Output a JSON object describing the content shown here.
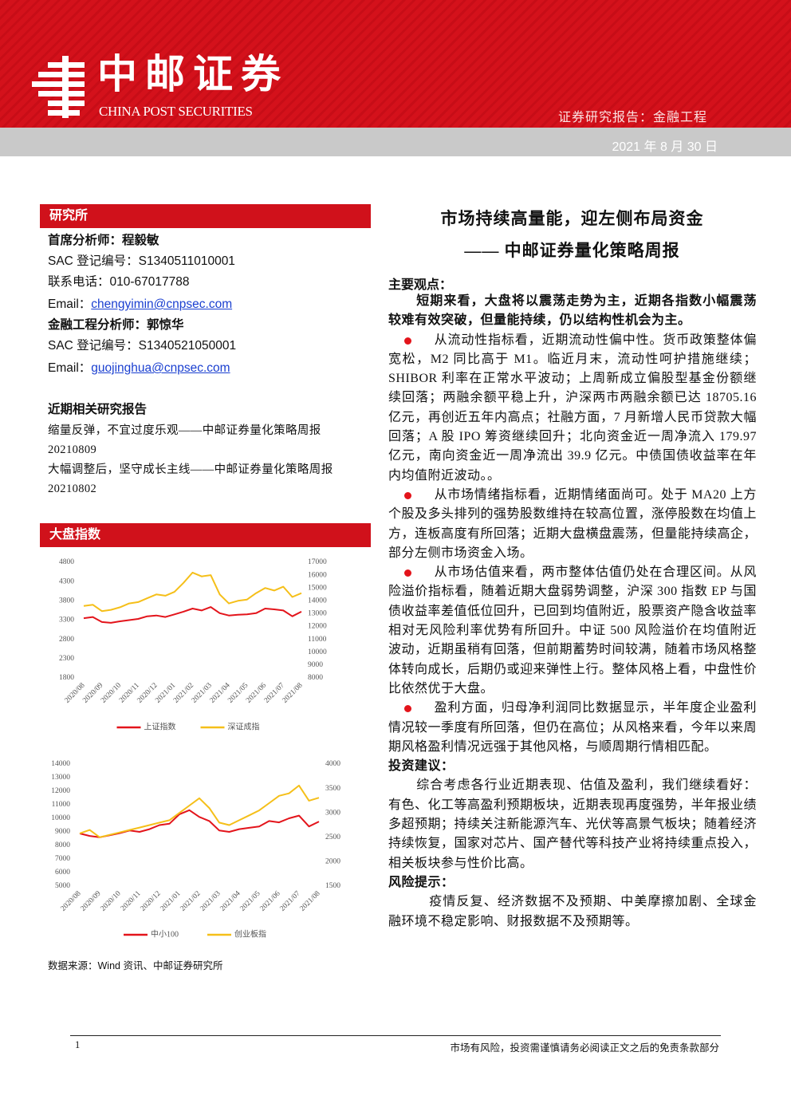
{
  "header": {
    "brand": "中邮证券",
    "brand_en": "CHINA POST SECURITIES",
    "report_type": "证券研究报告：金融工程",
    "date": "2021 年 8 月 30 日"
  },
  "sidebar": {
    "institute_heading": "研究所",
    "analysts": [
      {
        "title": "首席分析师：程毅敏",
        "sac": "SAC 登记编号：S1340511010001",
        "phone": "联系电话：010-67017788",
        "email_label": "Email：",
        "email": "chengyimin@cnpsec.com"
      },
      {
        "title": "金融工程分析师：郭惊华",
        "sac": "SAC 登记编号：S1340521050001",
        "email_label": "Email：",
        "email": "guojinghua@cnpsec.com"
      }
    ],
    "related_heading": "近期相关研究报告",
    "related": [
      "缩量反弹，不宜过度乐观——中邮证券量化策略周报 20210809",
      "大幅调整后，坚守成长主线——中邮证券量化策略周报 20210802"
    ],
    "index_heading": "大盘指数",
    "source": "数据来源：Wind 资讯、中邮证券研究所"
  },
  "main": {
    "title": "市场持续高量能，迎左侧布局资金",
    "subtitle": "—— 中邮证券量化策略周报",
    "views_heading": "主要观点：",
    "lead": "短期来看，大盘将以震荡走势为主，近期各指数小幅震荡较难有效突破，但量能持续，仍以结构性机会为主。",
    "bullets": [
      "从流动性指标看，近期流动性偏中性。货币政策整体偏宽松，M2 同比高于 M1。临近月末，流动性呵护措施继续；SHIBOR 利率在正常水平波动；上周新成立偏股型基金份额继续回落；两融余额平稳上升，沪深两市两融余额已达 18705.16 亿元，再创近五年内高点；社融方面，7 月新增人民币贷款大幅回落；A 股 IPO 筹资继续回升；北向资金近一周净流入 179.97 亿元，南向资金近一周净流出 39.9 亿元。中债国债收益率在年内均值附近波动。。",
      "从市场情绪指标看，近期情绪面尚可。处于 MA20 上方个股及多头排列的强势股数维持在较高位置，涨停股数在均值上方，连板高度有所回落；近期大盘横盘震荡，但量能持续高企，部分左侧市场资金入场。",
      "从市场估值来看，两市整体估值仍处在合理区间。从风险溢价指标看，随着近期大盘弱势调整，沪深 300 指数 EP 与国债收益率差值低位回升，已回到均值附近，股票资产隐含收益率相对无风险利率优势有所回升。中证 500 风险溢价在均值附近波动，近期虽稍有回落，但前期蓄势时间较满，随着市场风格整体转向成长，后期仍或迎来弹性上行。整体风格上看，中盘性价比依然优于大盘。",
      "盈利方面，归母净利润同比数据显示，半年度企业盈利情况较一季度有所回落，但仍在高位；从风格来看，今年以来周期风格盈利情况远强于其他风格，与顺周期行情相匹配。"
    ],
    "advice_heading": "投资建议：",
    "advice": "综合考虑各行业近期表现、估值及盈利，我们继续看好：有色、化工等高盈利预期板块，近期表现再度强势，半年报业绩多超预期；持续关注新能源汽车、光伏等高景气板块；随着经济持续恢复，国家对芯片、国产替代等科技产业将持续重点投入，相关板块参与性价比高。",
    "risk_heading": "风险提示：",
    "risk": "疫情反复、经济数据不及预期、中美摩擦加剧、全球金融环境不稳定影响、财报数据不及预期等。"
  },
  "footer": {
    "page": "1",
    "disclaimer": "市场有风险，投资需谨慎请务必阅读正文之后的免责条款部分"
  },
  "chart_data": [
    {
      "type": "line",
      "categories": [
        "2020/08",
        null,
        "2020/09",
        null,
        "2020/10",
        null,
        "2020/11",
        null,
        "2020/12",
        null,
        "2021/01",
        null,
        "2021/02",
        null,
        "2021/03",
        null,
        "2021/04",
        null,
        "2021/05",
        null,
        "2021/06",
        null,
        "2021/07",
        null,
        "2021/08"
      ],
      "series": [
        {
          "name": "上证指数",
          "color": "#e3141b",
          "axis": "y",
          "values": [
            3350,
            3380,
            3250,
            3230,
            3270,
            3300,
            3330,
            3400,
            3420,
            3380,
            3450,
            3520,
            3600,
            3550,
            3640,
            3480,
            3420,
            3440,
            3450,
            3480,
            3600,
            3580,
            3550,
            3400,
            3520
          ]
        },
        {
          "name": "深证成指",
          "color": "#f5bf19",
          "axis": "y2",
          "values": [
            13600,
            13700,
            13200,
            13300,
            13500,
            13800,
            13900,
            14200,
            14500,
            14400,
            14700,
            15400,
            16200,
            15900,
            16000,
            14500,
            13800,
            14000,
            14100,
            14600,
            15000,
            14800,
            15100,
            14300,
            14600
          ]
        }
      ],
      "ylim": [
        1800,
        4800
      ],
      "yticks": [
        1800,
        2300,
        2800,
        3300,
        3800,
        4300,
        4800
      ],
      "y2lim": [
        8000,
        17000
      ],
      "y2ticks": [
        8000,
        9000,
        10000,
        11000,
        12000,
        13000,
        14000,
        15000,
        16000,
        17000
      ]
    },
    {
      "type": "line",
      "categories": [
        "2020/08",
        null,
        "2020/09",
        null,
        "2020/10",
        null,
        "2020/11",
        null,
        "2020/12",
        null,
        "2021/01",
        null,
        "2021/02",
        null,
        "2021/03",
        null,
        "2021/04",
        null,
        "2021/05",
        null,
        "2021/06",
        null,
        "2021/07",
        null,
        "2021/08"
      ],
      "series": [
        {
          "name": "中小100",
          "color": "#e3141b",
          "axis": "y",
          "values": [
            8880,
            8700,
            8600,
            8750,
            8900,
            9100,
            9000,
            9200,
            9500,
            9600,
            10300,
            10600,
            10100,
            9800,
            9100,
            9000,
            9200,
            9300,
            9400,
            9800,
            9700,
            10000,
            10200,
            9400,
            9760
          ]
        },
        {
          "name": "创业板指",
          "color": "#f5bf19",
          "axis": "y2",
          "values": [
            2580,
            2650,
            2500,
            2550,
            2600,
            2650,
            2700,
            2750,
            2800,
            2850,
            3000,
            3150,
            3300,
            3100,
            2800,
            2750,
            2850,
            2950,
            3050,
            3200,
            3350,
            3400,
            3560,
            3250,
            3310
          ]
        }
      ],
      "ylim": [
        5000,
        14000
      ],
      "yticks": [
        5000,
        6000,
        7000,
        8000,
        9000,
        10000,
        11000,
        12000,
        13000,
        14000
      ],
      "y2lim": [
        1500,
        4000
      ],
      "y2ticks": [
        1500,
        2000,
        2500,
        3000,
        3500,
        4000
      ]
    }
  ]
}
